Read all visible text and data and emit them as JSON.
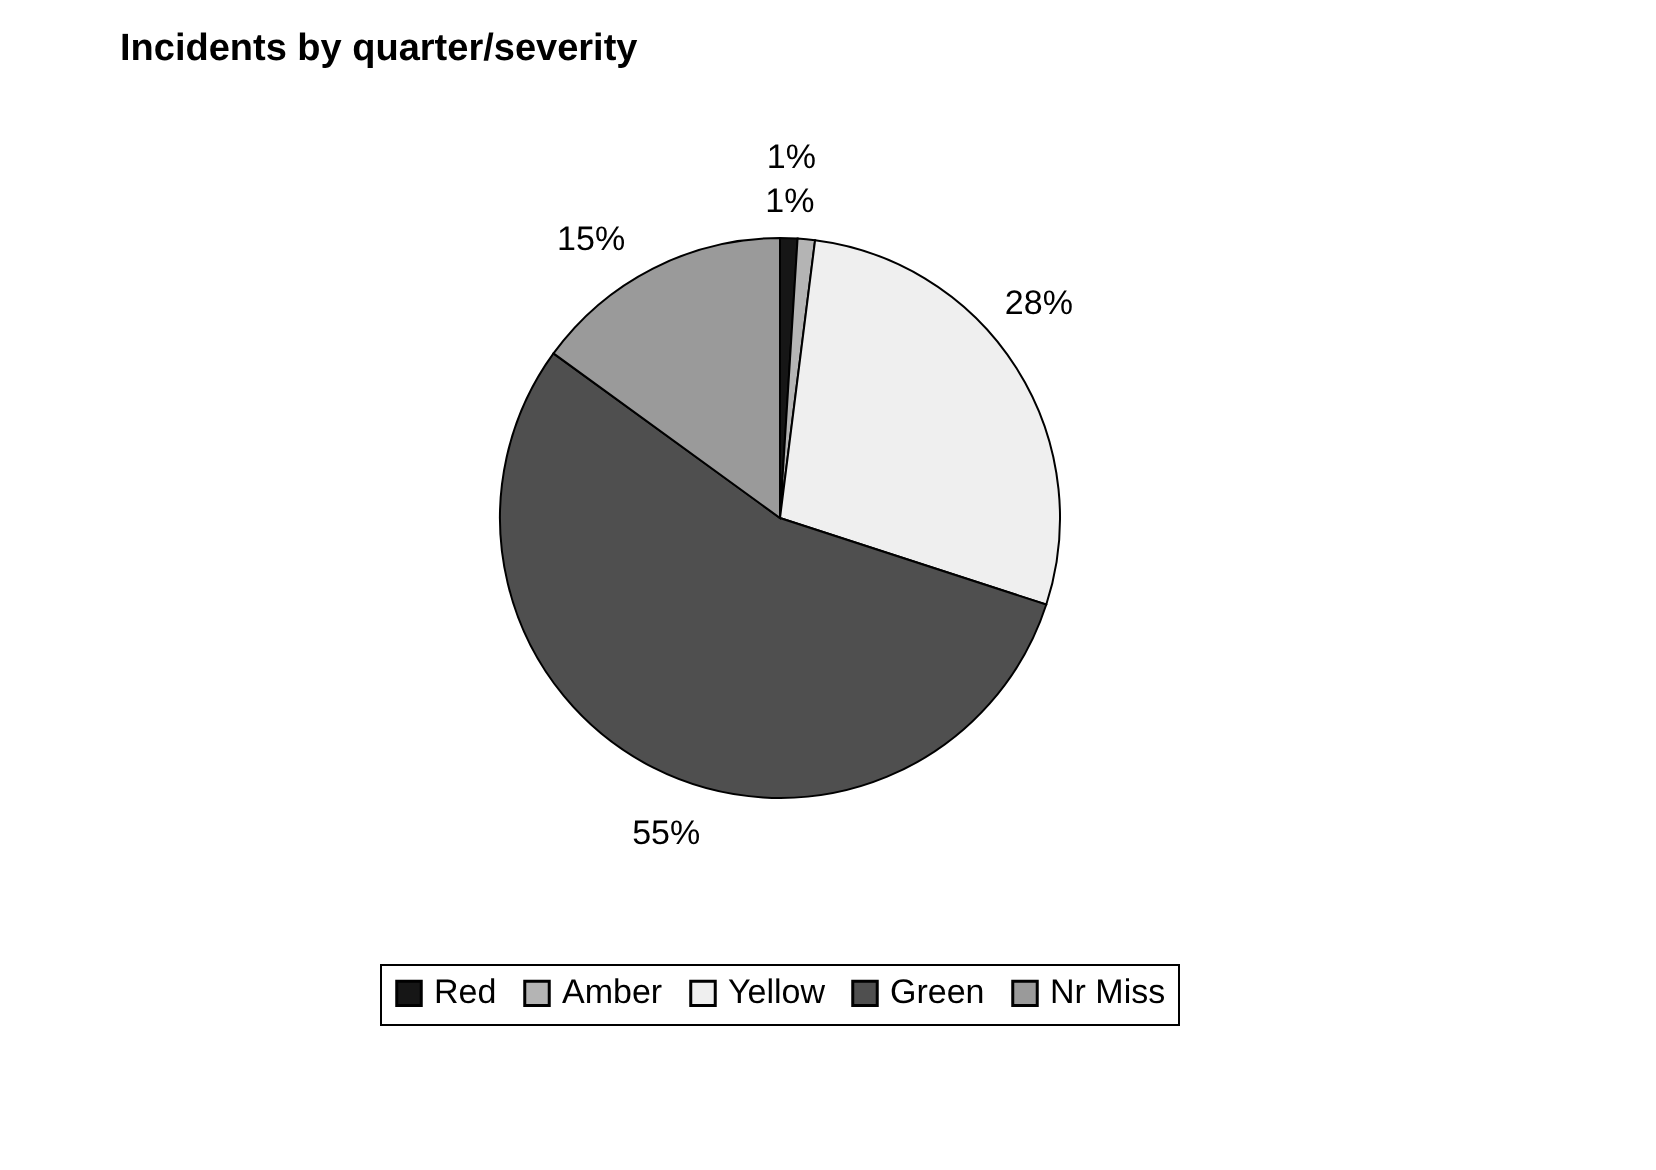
{
  "chart_data": {
    "type": "pie",
    "title": "Incidents by quarter/severity",
    "categories": [
      "Red",
      "Amber",
      "Yellow",
      "Green",
      "Nr Miss"
    ],
    "values": [
      1,
      1,
      28,
      55,
      15
    ],
    "value_labels": [
      "1%",
      "1%",
      "28%",
      "55%",
      "15%"
    ],
    "colors": [
      "#161616",
      "#b4b4b4",
      "#efefef",
      "#4f4f4f",
      "#9a9a9a"
    ],
    "legend": "bottom"
  }
}
